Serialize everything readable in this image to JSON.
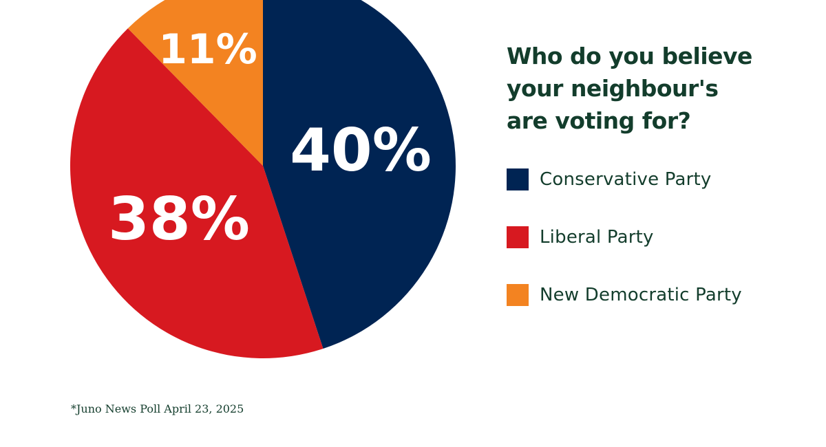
{
  "chart_data": {
    "type": "pie",
    "title": "Who do you believe\nyour neighbour's\nare voting for?",
    "slices": [
      {
        "name": "Conservative Party",
        "value": 40,
        "label": "40%",
        "color": "#002453"
      },
      {
        "name": "Liberal Party",
        "value": 38,
        "label": "38%",
        "color": "#d71920"
      },
      {
        "name": "New Democratic Party",
        "value": 11,
        "label": "11%",
        "color": "#f38321"
      }
    ],
    "legend_position": "right"
  },
  "footnote": "*Juno News Poll April 23, 2025"
}
